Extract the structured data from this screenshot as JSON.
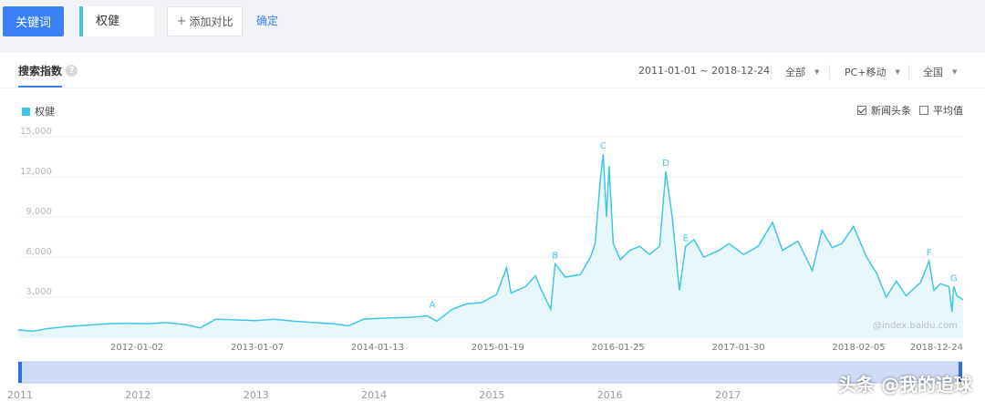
{
  "toolbar": {
    "keyword_button": "关键词",
    "keyword_value": "权健",
    "add_compare": "添加对比",
    "confirm": "确定"
  },
  "panel": {
    "tab_title": "搜索指数",
    "help_icon": "question-circle-icon",
    "date_range": "2011-01-01 ~ 2018-12-24",
    "filter_region_type": "全部",
    "filter_device": "PC+移动",
    "filter_area": "全国",
    "legend_series": "权健",
    "option_news": "新闻头条",
    "option_news_checked": true,
    "option_average": "平均值",
    "option_average_checked": false,
    "source_label": "@index.baidu.com"
  },
  "watermark": "头条 @我的追球",
  "colors": {
    "accent": "#3a7ff5",
    "series": "#3fc6e6",
    "area_fill": "#e8f7fb"
  },
  "chart_data": {
    "type": "area",
    "title": "",
    "xlabel": "",
    "ylabel": "",
    "ylim": [
      0,
      15000
    ],
    "yticks": [
      3000,
      6000,
      9000,
      12000,
      15000
    ],
    "ytick_labels": [
      "3,000",
      "6,000",
      "9,000",
      "12,000",
      "15,000"
    ],
    "x_range": [
      "2011-01-01",
      "2018-12-24"
    ],
    "xtick_labels": [
      "2012-01-02",
      "2013-01-07",
      "2014-01-13",
      "2015-01-19",
      "2016-01-25",
      "2017-01-30",
      "2018-02-05",
      "2018-12-24"
    ],
    "grid": true,
    "legend_position": "top-left",
    "series": [
      {
        "name": "权健",
        "points": [
          [
            "2011-01-01",
            550
          ],
          [
            "2011-02-15",
            450
          ],
          [
            "2011-04-01",
            650
          ],
          [
            "2011-06-01",
            800
          ],
          [
            "2011-08-01",
            900
          ],
          [
            "2011-10-01",
            1000
          ],
          [
            "2011-12-01",
            1050
          ],
          [
            "2012-02-01",
            1000
          ],
          [
            "2012-04-01",
            1100
          ],
          [
            "2012-06-01",
            950
          ],
          [
            "2012-07-15",
            700
          ],
          [
            "2012-09-01",
            1350
          ],
          [
            "2012-11-01",
            1300
          ],
          [
            "2013-01-01",
            1250
          ],
          [
            "2013-03-01",
            1350
          ],
          [
            "2013-05-01",
            1200
          ],
          [
            "2013-07-01",
            1100
          ],
          [
            "2013-09-01",
            1000
          ],
          [
            "2013-10-15",
            850
          ],
          [
            "2013-12-01",
            1350
          ],
          [
            "2014-01-01",
            1400
          ],
          [
            "2014-03-01",
            1450
          ],
          [
            "2014-05-01",
            1500
          ],
          [
            "2014-06-15",
            1600
          ],
          [
            "2014-07-15",
            1200
          ],
          [
            "2014-09-01",
            2100
          ],
          [
            "2014-10-15",
            2500
          ],
          [
            "2014-12-01",
            2600
          ],
          [
            "2015-01-15",
            3200
          ],
          [
            "2015-02-15",
            5200
          ],
          [
            "2015-03-01",
            3300
          ],
          [
            "2015-04-15",
            3800
          ],
          [
            "2015-05-15",
            4600
          ],
          [
            "2015-06-01",
            3600
          ],
          [
            "2015-07-01",
            2100
          ],
          [
            "2015-07-15",
            5500
          ],
          [
            "2015-08-15",
            4500
          ],
          [
            "2015-10-01",
            4700
          ],
          [
            "2015-11-01",
            6000
          ],
          [
            "2015-11-15",
            7000
          ],
          [
            "2015-12-01",
            11800
          ],
          [
            "2015-12-10",
            13700
          ],
          [
            "2015-12-20",
            9000
          ],
          [
            "2015-12-28",
            12800
          ],
          [
            "2016-01-10",
            7000
          ],
          [
            "2016-02-01",
            5800
          ],
          [
            "2016-03-01",
            6500
          ],
          [
            "2016-04-01",
            6800
          ],
          [
            "2016-05-01",
            6200
          ],
          [
            "2016-06-01",
            6800
          ],
          [
            "2016-06-20",
            12400
          ],
          [
            "2016-07-10",
            9000
          ],
          [
            "2016-08-01",
            3500
          ],
          [
            "2016-08-20",
            6800
          ],
          [
            "2016-09-15",
            7300
          ],
          [
            "2016-10-15",
            6000
          ],
          [
            "2016-12-01",
            6500
          ],
          [
            "2017-01-01",
            7000
          ],
          [
            "2017-02-15",
            6200
          ],
          [
            "2017-04-01",
            6800
          ],
          [
            "2017-05-15",
            8600
          ],
          [
            "2017-06-15",
            6500
          ],
          [
            "2017-08-01",
            7200
          ],
          [
            "2017-09-15",
            5000
          ],
          [
            "2017-10-15",
            8000
          ],
          [
            "2017-11-15",
            6700
          ],
          [
            "2017-12-15",
            7000
          ],
          [
            "2018-01-20",
            8300
          ],
          [
            "2018-03-01",
            6000
          ],
          [
            "2018-04-01",
            4800
          ],
          [
            "2018-05-01",
            3000
          ],
          [
            "2018-06-01",
            4200
          ],
          [
            "2018-07-01",
            3100
          ],
          [
            "2018-08-15",
            4100
          ],
          [
            "2018-09-10",
            5700
          ],
          [
            "2018-09-25",
            3500
          ],
          [
            "2018-10-15",
            4000
          ],
          [
            "2018-11-10",
            3800
          ],
          [
            "2018-11-20",
            1900
          ],
          [
            "2018-11-25",
            3800
          ],
          [
            "2018-12-05",
            3100
          ],
          [
            "2018-12-24",
            2800
          ]
        ]
      }
    ],
    "annotations": [
      {
        "label": "A",
        "x": "2014-07-01",
        "y": 1800
      },
      {
        "label": "B",
        "x": "2015-07-15",
        "y": 5500
      },
      {
        "label": "C",
        "x": "2015-12-10",
        "y": 13700
      },
      {
        "label": "D",
        "x": "2016-06-20",
        "y": 12400
      },
      {
        "label": "E",
        "x": "2016-08-20",
        "y": 6800
      },
      {
        "label": "F",
        "x": "2018-09-10",
        "y": 5700
      },
      {
        "label": "G",
        "x": "2018-11-25",
        "y": 3800
      }
    ],
    "navigator": {
      "year_labels": [
        "2011",
        "2012",
        "2013",
        "2014",
        "2015",
        "2016",
        "2017"
      ]
    }
  }
}
